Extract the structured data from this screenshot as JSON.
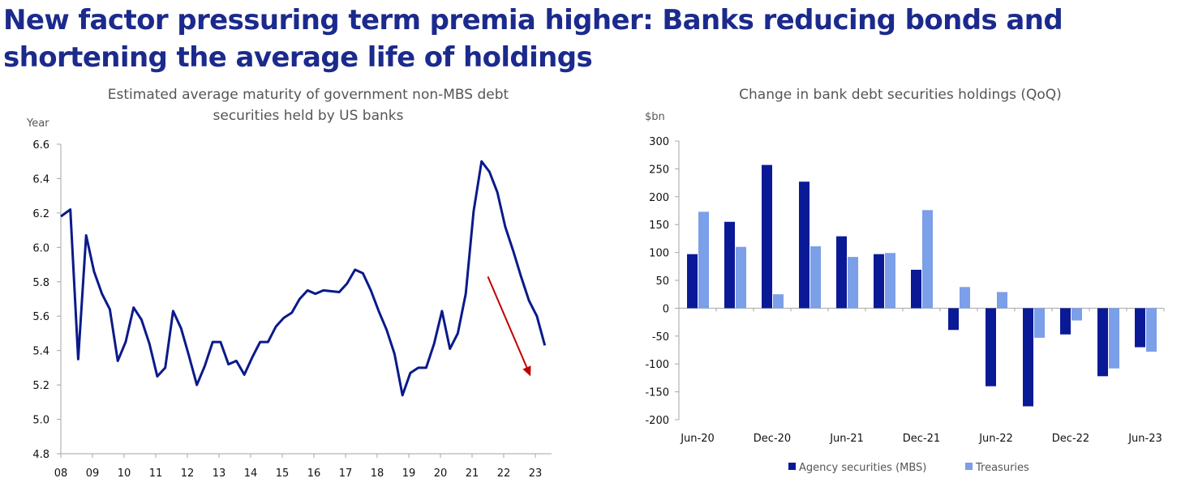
{
  "headline": {
    "line1": "New factor pressuring term premia higher: Banks reducing bonds and",
    "line2": "shortening the average life of holdings"
  },
  "colors": {
    "headline": "#1b2a8c",
    "line": "#0a1a8a",
    "arrow": "#c00000",
    "mbs": "#0a1a96",
    "treasuries": "#7b9fe8",
    "axis": "#a6a6a6"
  },
  "chart_data": [
    {
      "type": "line",
      "title_line1": "Estimated average maturity of government non-MBS debt",
      "title_line2": "securities held by US banks",
      "ylabel": "Year",
      "xlabel": "",
      "ylim": [
        4.8,
        6.6
      ],
      "yticks": [
        "4.8",
        "5.0",
        "5.2",
        "5.4",
        "5.6",
        "5.8",
        "6.0",
        "6.2",
        "6.4",
        "6.6"
      ],
      "xlim": [
        2008,
        2023.6
      ],
      "xtick_labels": [
        "08",
        "09",
        "10",
        "11",
        "12",
        "13",
        "14",
        "15",
        "16",
        "17",
        "18",
        "19",
        "20",
        "21",
        "22",
        "23"
      ],
      "grid": false,
      "annotation": "downward red arrow from mid-2021 toward late-2022",
      "series": [
        {
          "name": "Average maturity",
          "x": [
            2008.0,
            2008.3,
            2008.55,
            2008.8,
            2009.05,
            2009.3,
            2009.55,
            2009.8,
            2010.05,
            2010.3,
            2010.55,
            2010.8,
            2011.05,
            2011.3,
            2011.55,
            2011.8,
            2012.05,
            2012.3,
            2012.55,
            2012.8,
            2013.05,
            2013.3,
            2013.55,
            2013.8,
            2014.05,
            2014.3,
            2014.55,
            2014.8,
            2015.05,
            2015.3,
            2015.55,
            2015.8,
            2016.05,
            2016.3,
            2016.8,
            2017.05,
            2017.3,
            2017.55,
            2017.8,
            2018.05,
            2018.3,
            2018.55,
            2018.8,
            2019.05,
            2019.3,
            2019.55,
            2019.8,
            2020.05,
            2020.3,
            2020.55,
            2020.8,
            2021.05,
            2021.3,
            2021.55,
            2021.8,
            2022.05,
            2022.3,
            2022.55,
            2022.8,
            2023.05,
            2023.3
          ],
          "values": [
            6.18,
            6.22,
            5.35,
            6.07,
            5.86,
            5.73,
            5.64,
            5.34,
            5.45,
            5.65,
            5.58,
            5.44,
            5.25,
            5.3,
            5.63,
            5.53,
            5.37,
            5.2,
            5.31,
            5.45,
            5.45,
            5.32,
            5.34,
            5.26,
            5.36,
            5.45,
            5.45,
            5.54,
            5.59,
            5.62,
            5.7,
            5.75,
            5.73,
            5.75,
            5.74,
            5.79,
            5.87,
            5.85,
            5.75,
            5.63,
            5.52,
            5.38,
            5.14,
            5.27,
            5.3,
            5.3,
            5.44,
            5.63,
            5.41,
            5.5,
            5.73,
            6.21,
            6.5,
            6.44,
            6.32,
            6.12,
            5.98,
            5.83,
            5.69,
            5.6,
            5.43
          ]
        }
      ]
    },
    {
      "type": "bar",
      "title": "Change in bank debt securities holdings (QoQ)",
      "ylabel": "$bn",
      "xlabel": "",
      "ylim": [
        -200,
        300
      ],
      "yticks": [
        "-200",
        "-150",
        "-100",
        "-50",
        "0",
        "50",
        "100",
        "150",
        "200",
        "250",
        "300"
      ],
      "categories": [
        "Jun-20",
        "Sep-20",
        "Dec-20",
        "Mar-21",
        "Jun-21",
        "Sep-21",
        "Dec-21",
        "Mar-22",
        "Jun-22",
        "Sep-22",
        "Dec-22",
        "Mar-23",
        "Jun-23"
      ],
      "xtick_labels": [
        "Jun-20",
        "Dec-20",
        "Jun-21",
        "Dec-21",
        "Jun-22",
        "Dec-22",
        "Jun-23"
      ],
      "legend_position": "bottom",
      "grid": false,
      "series": [
        {
          "name": "Agency securities (MBS)",
          "values": [
            97,
            155,
            257,
            227,
            129,
            97,
            69,
            -39,
            -140,
            -176,
            -47,
            -122,
            -70
          ]
        },
        {
          "name": "Treasuries",
          "values": [
            173,
            110,
            25,
            111,
            92,
            99,
            176,
            38,
            29,
            -53,
            -22,
            -108,
            -78
          ]
        }
      ]
    }
  ]
}
